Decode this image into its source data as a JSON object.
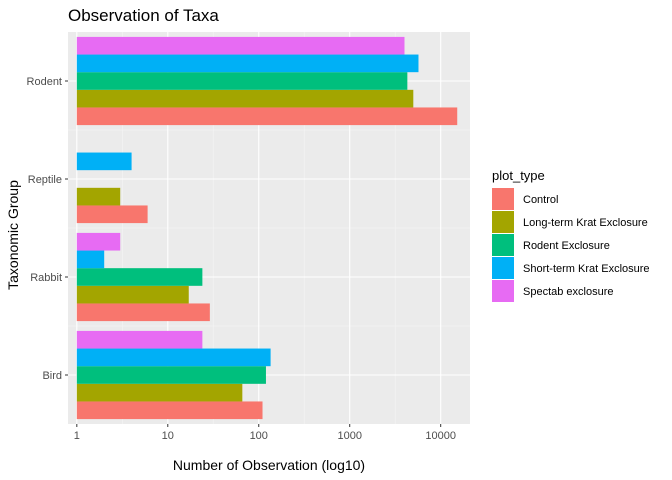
{
  "chart_data": {
    "type": "bar",
    "orientation": "horizontal",
    "title": "Observation of Taxa",
    "xlabel": "Number of Observation (log10)",
    "ylabel": "Taxonomic Group",
    "x_scale": "log10",
    "xlim": [
      0.8,
      21000
    ],
    "x_ticks": [
      1,
      10,
      100,
      1000,
      10000
    ],
    "x_tick_labels": [
      "1",
      "10",
      "100",
      "1000",
      "10000"
    ],
    "grid": true,
    "legend_position": "right",
    "legend_title": "plot_type",
    "categories": [
      "Bird",
      "Rabbit",
      "Reptile",
      "Rodent"
    ],
    "series": [
      {
        "name": "Control",
        "color": "#F8766D",
        "values": [
          110,
          29,
          6,
          15200
        ]
      },
      {
        "name": "Long-term Krat Exclosure",
        "color": "#A3A500",
        "values": [
          66,
          17,
          3,
          5000
        ]
      },
      {
        "name": "Rodent Exclosure",
        "color": "#00BF7D",
        "values": [
          120,
          24,
          null,
          4300
        ]
      },
      {
        "name": "Short-term Krat Exclosure",
        "color": "#00B0F6",
        "values": [
          135,
          2,
          4,
          5700
        ]
      },
      {
        "name": "Spectab exclosure",
        "color": "#E76BF3",
        "values": [
          24,
          3,
          null,
          4000
        ]
      }
    ]
  }
}
